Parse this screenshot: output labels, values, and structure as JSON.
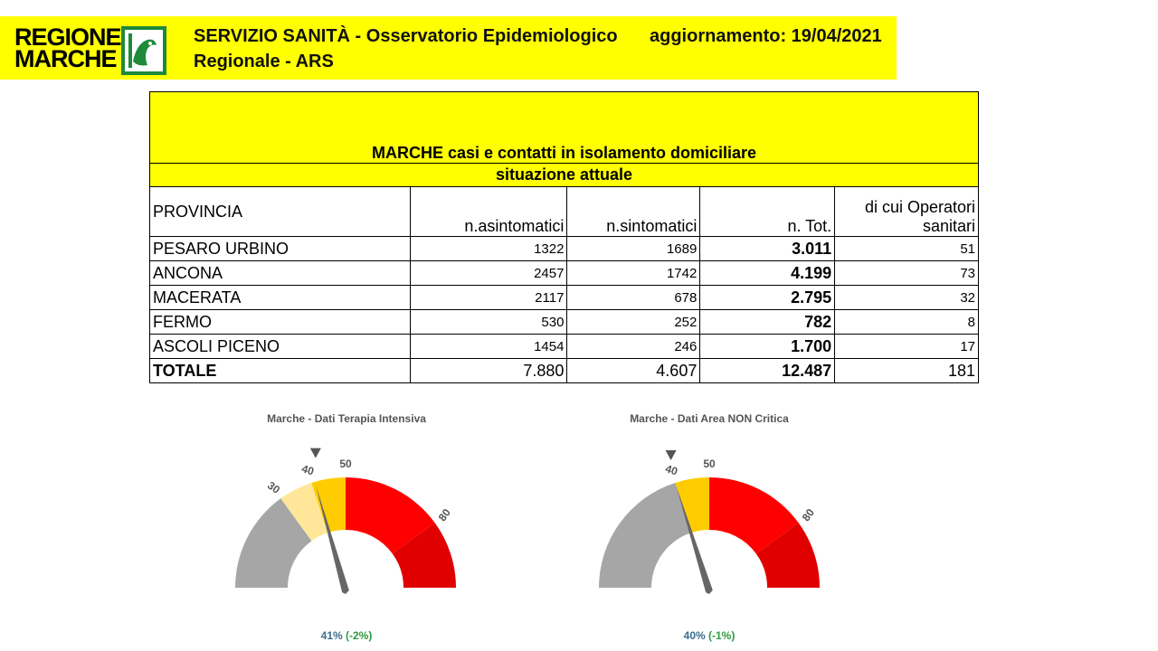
{
  "header": {
    "logo_line1": "REGIONE",
    "logo_line2": "MARCHE",
    "title_line1": "SERVIZIO SANITÀ - Osservatorio Epidemiologico",
    "title_line2": "Regionale - ARS",
    "updated": "aggiornamento: 19/04/2021"
  },
  "table": {
    "title": "MARCHE casi e contatti in isolamento domiciliare",
    "subtitle": "situazione attuale",
    "columns": [
      "PROVINCIA",
      "n.asintomatici",
      "n.sintomatici",
      "n. Tot.",
      "di cui Operatori sanitari"
    ],
    "col5_line1": "di cui Operatori",
    "col5_line2": "sanitari",
    "rows": [
      {
        "provincia": "PESARO URBINO",
        "asintomatici": "1322",
        "sintomatici": "1689",
        "tot": "3.011",
        "operatori": "51"
      },
      {
        "provincia": "ANCONA",
        "asintomatici": "2457",
        "sintomatici": "1742",
        "tot": "4.199",
        "operatori": "73"
      },
      {
        "provincia": "MACERATA",
        "asintomatici": "2117",
        "sintomatici": "678",
        "tot": "2.795",
        "operatori": "32"
      },
      {
        "provincia": "FERMO",
        "asintomatici": "530",
        "sintomatici": "252",
        "tot": "782",
        "operatori": "8"
      },
      {
        "provincia": "ASCOLI PICENO",
        "asintomatici": "1454",
        "sintomatici": "246",
        "tot": "1.700",
        "operatori": "17"
      }
    ],
    "total": {
      "provincia": "TOTALE",
      "asintomatici": "7.880",
      "sintomatici": "4.607",
      "tot": "12.487",
      "operatori": "181"
    }
  },
  "gauges": [
    {
      "title": "Marche - Dati Terapia Intensiva",
      "value": 41,
      "prev_marker": 43,
      "ticks": [
        "30",
        "40",
        "50",
        "80"
      ],
      "value_label": "41%",
      "change_label": "(-2%)",
      "bands": [
        {
          "from": 0,
          "to": 30,
          "color": "#a6a6a6"
        },
        {
          "from": 30,
          "to": 40,
          "color": "#ffe699"
        },
        {
          "from": 40,
          "to": 50,
          "color": "#ffcc00"
        },
        {
          "from": 50,
          "to": 80,
          "color": "#ff0000"
        },
        {
          "from": 80,
          "to": 100,
          "color": "#e00000"
        }
      ]
    },
    {
      "title": "Marche - Dati Area NON Critica",
      "value": 40,
      "prev_marker": 41,
      "ticks": [
        "40",
        "50",
        "80"
      ],
      "value_label": "40%",
      "change_label": "(-1%)",
      "bands": [
        {
          "from": 0,
          "to": 40,
          "color": "#a6a6a6"
        },
        {
          "from": 40,
          "to": 50,
          "color": "#ffcc00"
        },
        {
          "from": 50,
          "to": 80,
          "color": "#ff0000"
        },
        {
          "from": 80,
          "to": 100,
          "color": "#e00000"
        }
      ]
    }
  ]
}
